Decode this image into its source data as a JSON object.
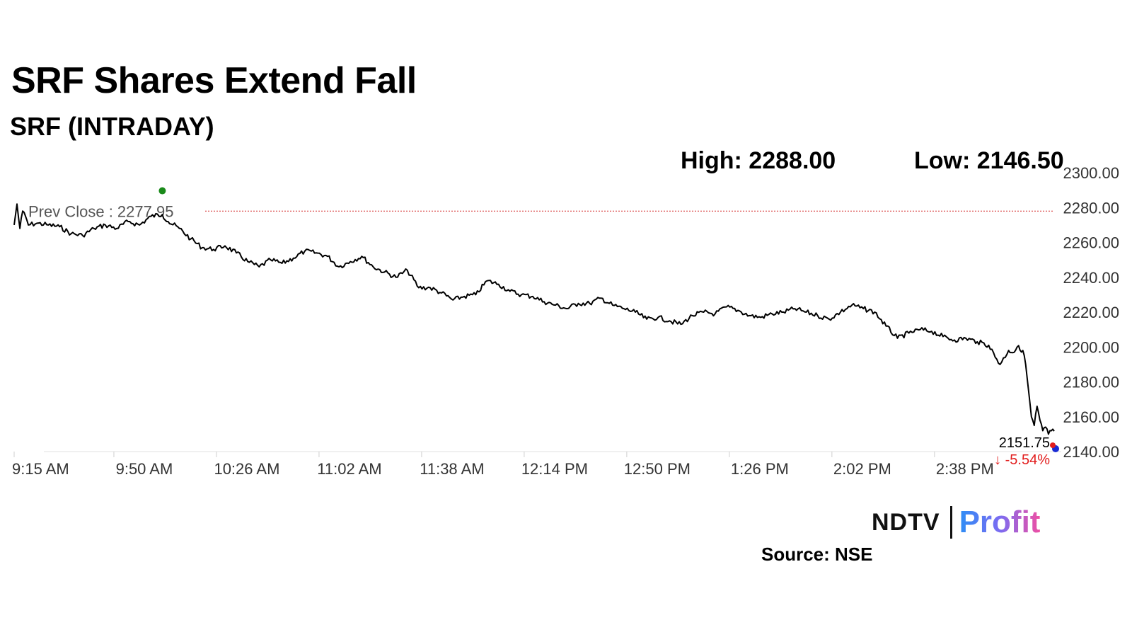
{
  "header": {
    "title": "SRF Shares Extend Fall",
    "subtitle": "SRF (INTRADAY)"
  },
  "stats": {
    "high": "High: 2288.00",
    "low": "Low: 2146.50"
  },
  "footer": {
    "logo_left": "NDTV",
    "logo_right": "Profit",
    "source": "Source: NSE"
  },
  "colors": {
    "line": "#000000",
    "prev_close_line": "#d42a2a",
    "high_marker": "#1a8a1a",
    "low_marker": "#1a2bd4",
    "last_marker": "#e21d1d",
    "change_text": "#e21d1d",
    "axis_text": "#333333"
  },
  "chart_data": {
    "type": "line",
    "x_tick_labels": [
      "9:15 AM",
      "9:50 AM",
      "10:26 AM",
      "11:02 AM",
      "11:38 AM",
      "12:14 PM",
      "12:50 PM",
      "1:26 PM",
      "2:02 PM",
      "2:38 PM"
    ],
    "y_tick_labels": [
      "2300.00",
      "2280.00",
      "2260.00",
      "2240.00",
      "2220.00",
      "2200.00",
      "2180.00",
      "2160.00",
      "2140.00"
    ],
    "ylim": [
      2140,
      2300
    ],
    "y_axis_position": "right",
    "x_range_minutes_after_open": [
      0,
      365
    ],
    "prev_close": 2277.95,
    "prev_close_label": "Prev Close : 2277.95",
    "high": 2288.0,
    "low": 2146.5,
    "last_price": "2151.75",
    "last_change": "↓ -5.54%",
    "series": [
      {
        "x": [
          0,
          1,
          2,
          3,
          4,
          5,
          8,
          12,
          16,
          20,
          24,
          28,
          32,
          36,
          40,
          44,
          48,
          52,
          54,
          58,
          62,
          66,
          70,
          74,
          78,
          82,
          86,
          90,
          94,
          98,
          102,
          106,
          110,
          114,
          118,
          122,
          126,
          130,
          134,
          138,
          142,
          146,
          150,
          154,
          158,
          162,
          166,
          170,
          174,
          178,
          182,
          186,
          190,
          194,
          198,
          202,
          206,
          210,
          214,
          218,
          222,
          226,
          230,
          234,
          238,
          242,
          246,
          250,
          254,
          258,
          262,
          266,
          270,
          274,
          278,
          282,
          286,
          290,
          294,
          298,
          302,
          306,
          310,
          314,
          318,
          322,
          326,
          330,
          334,
          338,
          342,
          346,
          349,
          351,
          352,
          354,
          355,
          356,
          357,
          358,
          359,
          360,
          361,
          362,
          363,
          364,
          365
        ],
        "values": [
          2270,
          2282,
          2268,
          2278,
          2275,
          2270,
          2271,
          2270,
          2269,
          2265,
          2264,
          2268,
          2270,
          2268,
          2272,
          2270,
          2275,
          2276,
          2272,
          2268,
          2262,
          2257,
          2256,
          2258,
          2254,
          2249,
          2246,
          2250,
          2248,
          2251,
          2255,
          2254,
          2252,
          2246,
          2249,
          2252,
          2246,
          2243,
          2240,
          2244,
          2234,
          2234,
          2231,
          2227,
          2229,
          2230,
          2238,
          2236,
          2232,
          2230,
          2229,
          2226,
          2224,
          2222,
          2225,
          2225,
          2228,
          2224,
          2222,
          2220,
          2216,
          2217,
          2215,
          2213,
          2218,
          2220,
          2219,
          2223,
          2221,
          2218,
          2217,
          2219,
          2220,
          2222,
          2220,
          2218,
          2216,
          2220,
          2224,
          2222,
          2220,
          2212,
          2205,
          2208,
          2210,
          2209,
          2206,
          2204,
          2205,
          2203,
          2201,
          2190,
          2198,
          2197,
          2200,
          2198,
          2190,
          2175,
          2160,
          2155,
          2166,
          2158,
          2152,
          2154,
          2150,
          2152,
          2151.75
        ]
      }
    ]
  }
}
